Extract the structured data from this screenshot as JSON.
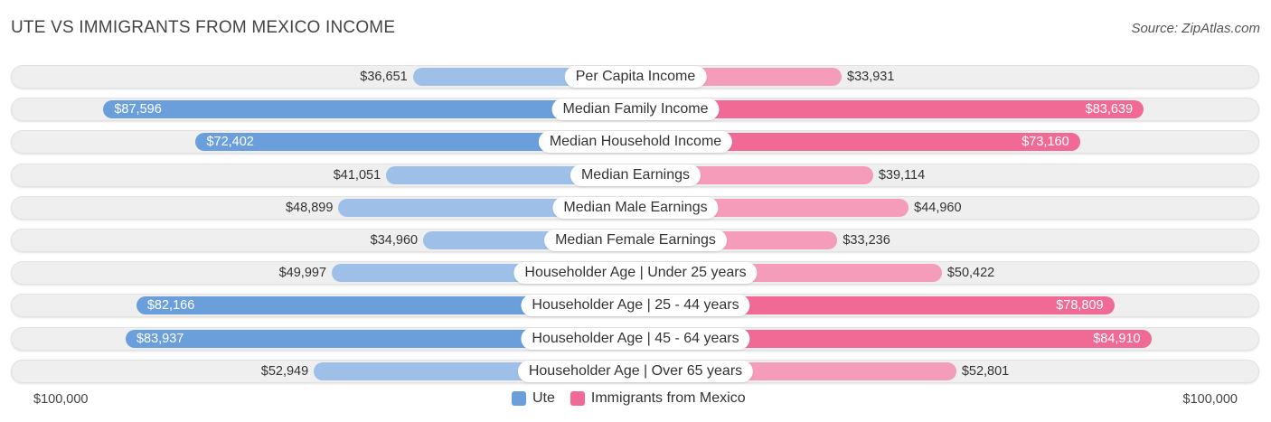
{
  "header": {
    "title": "UTE VS IMMIGRANTS FROM MEXICO INCOME",
    "source": "Source: ZipAtlas.com"
  },
  "colors": {
    "left_strong": "#6b9fdc",
    "left_light": "#9ec0e8",
    "right_strong": "#f06a95",
    "right_light": "#f59cba"
  },
  "chart_data": {
    "type": "bar",
    "orientation": "horizontal-diverging",
    "title": "UTE VS IMMIGRANTS FROM MEXICO INCOME",
    "max_value": 100000,
    "axis_left_label": "$100,000",
    "axis_right_label": "$100,000",
    "categories": [
      "Per Capita Income",
      "Median Family Income",
      "Median Household Income",
      "Median Earnings",
      "Median Male Earnings",
      "Median Female Earnings",
      "Householder Age | Under 25 years",
      "Householder Age | 25 - 44 years",
      "Householder Age | 45 - 64 years",
      "Householder Age | Over 65 years"
    ],
    "series": [
      {
        "name": "Ute",
        "values": [
          36651,
          87596,
          72402,
          41051,
          48899,
          34960,
          49997,
          82166,
          83937,
          52949
        ],
        "labels": [
          "$36,651",
          "$87,596",
          "$72,402",
          "$41,051",
          "$48,899",
          "$34,960",
          "$49,997",
          "$82,166",
          "$83,937",
          "$52,949"
        ]
      },
      {
        "name": "Immigrants from Mexico",
        "values": [
          33931,
          83639,
          73160,
          39114,
          44960,
          33236,
          50422,
          78809,
          84910,
          52801
        ],
        "labels": [
          "$33,931",
          "$83,639",
          "$73,160",
          "$39,114",
          "$44,960",
          "$33,236",
          "$50,422",
          "$78,809",
          "$84,910",
          "$52,801"
        ]
      }
    ],
    "legend": [
      "Ute",
      "Immigrants from Mexico"
    ]
  }
}
